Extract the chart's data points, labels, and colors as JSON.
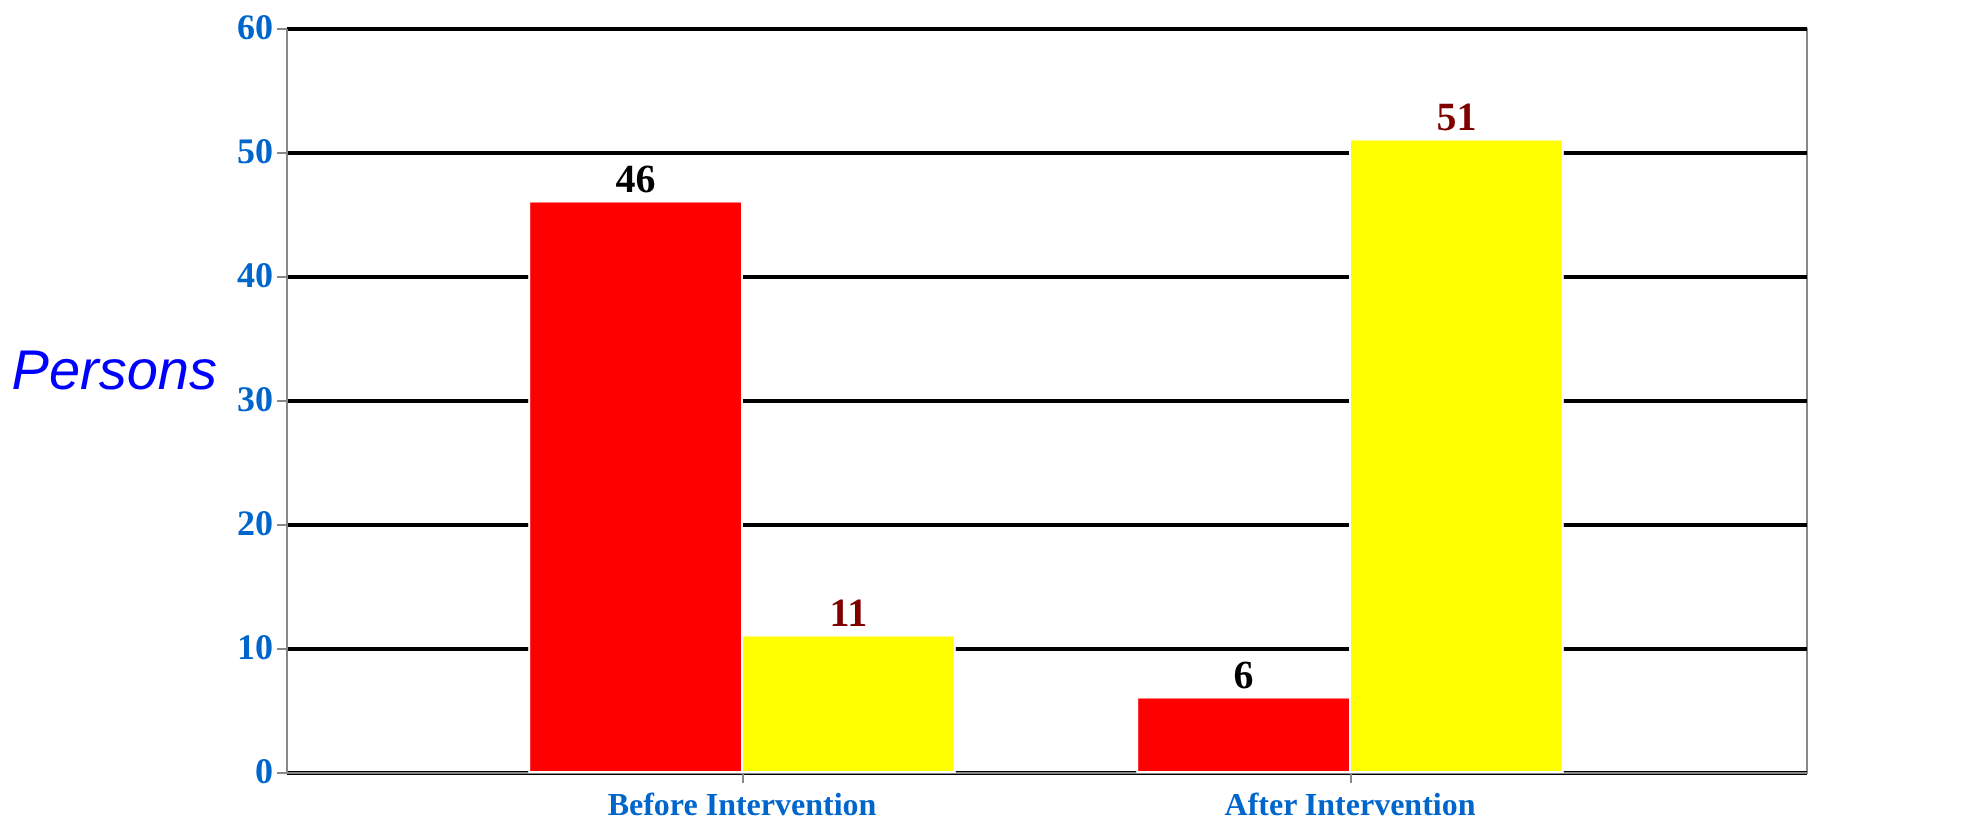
{
  "chart_data": {
    "type": "bar",
    "ylabel": "Persons",
    "categories": [
      "Before Intervention",
      "After Intervention"
    ],
    "series": [
      {
        "color": "#ff0000",
        "values": [
          46,
          6
        ]
      },
      {
        "color": "#ffff00",
        "values": [
          11,
          51
        ]
      }
    ],
    "ylim": [
      0,
      60
    ],
    "yticks": [
      0,
      10,
      20,
      30,
      40,
      50,
      60
    ],
    "grid": "y",
    "legend": false,
    "data_labels": true
  }
}
